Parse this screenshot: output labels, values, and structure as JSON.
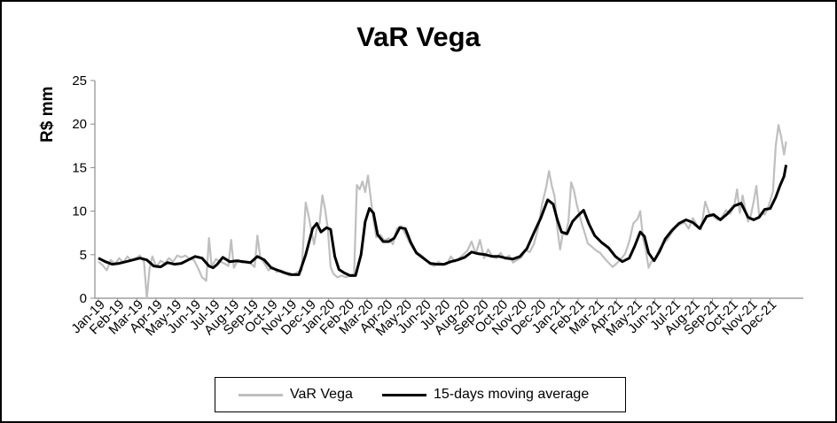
{
  "chart_data": {
    "type": "line",
    "title": "VaR Vega",
    "ylabel": "R$ mm",
    "xlabel": "",
    "ylim": [
      0,
      25
    ],
    "yticks": [
      "0",
      "5",
      "10",
      "15",
      "20",
      "25"
    ],
    "month_labels": [
      "Jan-19",
      "Feb-19",
      "Mar-19",
      "Apr-19",
      "May-19",
      "Jun-19",
      "Jul-19",
      "Aug-19",
      "Sep-19",
      "Oct-19",
      "Nov-19",
      "Dec-19",
      "Jan-20",
      "Feb-20",
      "Mar-20",
      "Apr-20",
      "May-20",
      "Jun-20",
      "Jul-20",
      "Aug-20",
      "Sep-20",
      "Oct-20",
      "Nov-20",
      "Dec-20",
      "Jan-21",
      "Feb-21",
      "Mar-21",
      "Apr-21",
      "May-21",
      "Jun-21",
      "Jul-21",
      "Aug-21",
      "Sep-21",
      "Oct-21",
      "Nov-21",
      "Dec-21"
    ],
    "legend_position": "bottom",
    "grid": false,
    "series": [
      {
        "name": "VaR Vega",
        "color": "#bfbfbf",
        "points": [
          [
            0,
            4.2
          ],
          [
            0.3,
            3.8
          ],
          [
            0.6,
            3.2
          ],
          [
            0.9,
            4.4
          ],
          [
            1.2,
            3.9
          ],
          [
            1.5,
            4.6
          ],
          [
            1.8,
            4.1
          ],
          [
            2.1,
            4.8
          ],
          [
            2.4,
            4.3
          ],
          [
            2.7,
            4.6
          ],
          [
            3.0,
            4.9
          ],
          [
            3.3,
            4.2
          ],
          [
            3.5,
            0
          ],
          [
            3.7,
            3.4
          ],
          [
            3.9,
            4.8
          ],
          [
            4.2,
            3.6
          ],
          [
            4.5,
            4.3
          ],
          [
            4.8,
            4.0
          ],
          [
            5.1,
            4.6
          ],
          [
            5.4,
            4.2
          ],
          [
            5.7,
            4.9
          ],
          [
            6.0,
            4.7
          ],
          [
            6.3,
            4.9
          ],
          [
            6.6,
            4.5
          ],
          [
            6.9,
            4.4
          ],
          [
            7.2,
            3.5
          ],
          [
            7.5,
            2.4
          ],
          [
            7.8,
            2.0
          ],
          [
            8.0,
            6.9
          ],
          [
            8.2,
            3.6
          ],
          [
            8.5,
            4.5
          ],
          [
            8.8,
            4.2
          ],
          [
            9.1,
            4.0
          ],
          [
            9.4,
            3.7
          ],
          [
            9.6,
            6.7
          ],
          [
            9.8,
            3.5
          ],
          [
            10.1,
            4.4
          ],
          [
            10.4,
            4.1
          ],
          [
            10.7,
            4.2
          ],
          [
            11.0,
            4.0
          ],
          [
            11.3,
            3.6
          ],
          [
            11.5,
            7.2
          ],
          [
            11.7,
            4.8
          ],
          [
            12.0,
            4.0
          ],
          [
            12.3,
            3.2
          ],
          [
            12.6,
            3.6
          ],
          [
            12.9,
            3.0
          ],
          [
            13.2,
            3.2
          ],
          [
            13.5,
            3.0
          ],
          [
            13.8,
            2.6
          ],
          [
            14.1,
            2.7
          ],
          [
            14.4,
            3.0
          ],
          [
            14.7,
            3.2
          ],
          [
            15.0,
            11.0
          ],
          [
            15.2,
            9.5
          ],
          [
            15.4,
            7.8
          ],
          [
            15.6,
            6.2
          ],
          [
            15.8,
            8.0
          ],
          [
            16.0,
            8.6
          ],
          [
            16.2,
            11.8
          ],
          [
            16.4,
            10.2
          ],
          [
            16.6,
            7.9
          ],
          [
            16.8,
            3.6
          ],
          [
            17.0,
            2.8
          ],
          [
            17.3,
            2.4
          ],
          [
            17.6,
            2.6
          ],
          [
            17.9,
            2.4
          ],
          [
            18.2,
            2.6
          ],
          [
            18.5,
            2.8
          ],
          [
            18.7,
            13.0
          ],
          [
            18.9,
            12.5
          ],
          [
            19.1,
            13.4
          ],
          [
            19.3,
            12.2
          ],
          [
            19.5,
            14.1
          ],
          [
            19.7,
            11.5
          ],
          [
            19.9,
            9.0
          ],
          [
            20.1,
            7.0
          ],
          [
            20.4,
            7.3
          ],
          [
            20.7,
            6.6
          ],
          [
            21.0,
            6.9
          ],
          [
            21.3,
            6.2
          ],
          [
            21.6,
            8.0
          ],
          [
            21.9,
            8.3
          ],
          [
            22.2,
            7.4
          ],
          [
            22.5,
            6.4
          ],
          [
            22.8,
            5.6
          ],
          [
            23.1,
            5.2
          ],
          [
            23.4,
            4.9
          ],
          [
            23.7,
            4.4
          ],
          [
            24.0,
            3.9
          ],
          [
            24.3,
            3.7
          ],
          [
            24.6,
            4.2
          ],
          [
            24.9,
            3.8
          ],
          [
            25.2,
            3.9
          ],
          [
            25.5,
            4.8
          ],
          [
            25.8,
            4.2
          ],
          [
            26.1,
            4.6
          ],
          [
            26.4,
            5.0
          ],
          [
            26.7,
            5.5
          ],
          [
            27.0,
            6.5
          ],
          [
            27.3,
            5.1
          ],
          [
            27.6,
            6.7
          ],
          [
            27.9,
            4.6
          ],
          [
            28.2,
            5.6
          ],
          [
            28.5,
            4.8
          ],
          [
            28.8,
            4.6
          ],
          [
            29.1,
            5.2
          ],
          [
            29.4,
            4.5
          ],
          [
            29.7,
            4.9
          ],
          [
            30.0,
            4.1
          ],
          [
            30.3,
            4.4
          ],
          [
            30.6,
            4.7
          ],
          [
            30.9,
            5.5
          ],
          [
            31.2,
            5.3
          ],
          [
            31.5,
            6.2
          ],
          [
            31.8,
            8.0
          ],
          [
            32.1,
            10.8
          ],
          [
            32.4,
            12.8
          ],
          [
            32.6,
            14.6
          ],
          [
            32.8,
            12.9
          ],
          [
            33.0,
            11.7
          ],
          [
            33.2,
            8.0
          ],
          [
            33.4,
            5.6
          ],
          [
            33.6,
            7.5
          ],
          [
            33.8,
            7.3
          ],
          [
            34.0,
            8.8
          ],
          [
            34.2,
            13.3
          ],
          [
            34.4,
            12.4
          ],
          [
            34.6,
            10.8
          ],
          [
            34.8,
            9.6
          ],
          [
            35.0,
            8.4
          ],
          [
            35.2,
            7.4
          ],
          [
            35.4,
            6.3
          ],
          [
            35.7,
            5.9
          ],
          [
            36.0,
            5.5
          ],
          [
            36.3,
            5.2
          ],
          [
            36.6,
            4.6
          ],
          [
            36.9,
            4.1
          ],
          [
            37.2,
            3.6
          ],
          [
            37.5,
            4.0
          ],
          [
            37.8,
            4.5
          ],
          [
            38.1,
            5.1
          ],
          [
            38.4,
            6.5
          ],
          [
            38.7,
            8.6
          ],
          [
            39.0,
            9.1
          ],
          [
            39.2,
            10.0
          ],
          [
            39.4,
            6.9
          ],
          [
            39.6,
            5.5
          ],
          [
            39.8,
            3.5
          ],
          [
            40.0,
            4.2
          ],
          [
            40.3,
            4.6
          ],
          [
            40.6,
            5.7
          ],
          [
            40.9,
            6.3
          ],
          [
            41.2,
            6.8
          ],
          [
            41.5,
            7.6
          ],
          [
            41.8,
            8.2
          ],
          [
            42.1,
            8.5
          ],
          [
            42.4,
            8.7
          ],
          [
            42.7,
            8.0
          ],
          [
            43.0,
            9.2
          ],
          [
            43.3,
            8.4
          ],
          [
            43.6,
            7.9
          ],
          [
            43.9,
            11.1
          ],
          [
            44.2,
            9.7
          ],
          [
            44.5,
            9.4
          ],
          [
            44.8,
            9.0
          ],
          [
            45.1,
            9.3
          ],
          [
            45.4,
            10.1
          ],
          [
            45.7,
            9.7
          ],
          [
            46.0,
            10.6
          ],
          [
            46.2,
            12.5
          ],
          [
            46.4,
            9.8
          ],
          [
            46.6,
            11.8
          ],
          [
            46.8,
            10.2
          ],
          [
            47.0,
            8.8
          ],
          [
            47.2,
            9.5
          ],
          [
            47.4,
            11.1
          ],
          [
            47.6,
            12.9
          ],
          [
            47.8,
            9.5
          ],
          [
            48.0,
            9.8
          ],
          [
            48.2,
            9.6
          ],
          [
            48.4,
            10.2
          ],
          [
            48.6,
            11.2
          ],
          [
            48.8,
            12.3
          ],
          [
            49.0,
            17.5
          ],
          [
            49.2,
            19.9
          ],
          [
            49.4,
            18.5
          ],
          [
            49.6,
            16.5
          ],
          [
            49.75,
            18.0
          ]
        ]
      },
      {
        "name": "15-days moving average",
        "color": "#000000",
        "points": [
          [
            0,
            4.6
          ],
          [
            0.5,
            4.2
          ],
          [
            1.0,
            3.9
          ],
          [
            1.5,
            4.0
          ],
          [
            2.0,
            4.2
          ],
          [
            2.5,
            4.4
          ],
          [
            3.0,
            4.6
          ],
          [
            3.5,
            4.4
          ],
          [
            4.0,
            3.7
          ],
          [
            4.5,
            3.6
          ],
          [
            5.0,
            4.1
          ],
          [
            5.5,
            3.9
          ],
          [
            6.0,
            4.0
          ],
          [
            6.5,
            4.4
          ],
          [
            7.0,
            4.8
          ],
          [
            7.5,
            4.6
          ],
          [
            8.0,
            3.7
          ],
          [
            8.3,
            3.5
          ],
          [
            8.6,
            3.9
          ],
          [
            9.0,
            4.7
          ],
          [
            9.5,
            4.2
          ],
          [
            10.0,
            4.3
          ],
          [
            10.5,
            4.2
          ],
          [
            11.0,
            4.1
          ],
          [
            11.5,
            4.8
          ],
          [
            12.0,
            4.4
          ],
          [
            12.5,
            3.5
          ],
          [
            13.0,
            3.2
          ],
          [
            13.5,
            2.9
          ],
          [
            14.0,
            2.7
          ],
          [
            14.5,
            2.7
          ],
          [
            15.0,
            5.0
          ],
          [
            15.5,
            8.0
          ],
          [
            15.8,
            8.6
          ],
          [
            16.1,
            7.6
          ],
          [
            16.5,
            8.1
          ],
          [
            16.8,
            7.9
          ],
          [
            17.1,
            4.8
          ],
          [
            17.4,
            3.3
          ],
          [
            17.8,
            2.9
          ],
          [
            18.2,
            2.6
          ],
          [
            18.6,
            2.6
          ],
          [
            19.0,
            5.0
          ],
          [
            19.3,
            8.8
          ],
          [
            19.6,
            10.3
          ],
          [
            19.9,
            9.8
          ],
          [
            20.2,
            7.3
          ],
          [
            20.6,
            6.5
          ],
          [
            21.0,
            6.5
          ],
          [
            21.4,
            6.9
          ],
          [
            21.8,
            8.1
          ],
          [
            22.2,
            8.0
          ],
          [
            22.6,
            6.4
          ],
          [
            23.0,
            5.2
          ],
          [
            23.5,
            4.6
          ],
          [
            24.0,
            4.0
          ],
          [
            24.5,
            3.9
          ],
          [
            25.0,
            3.9
          ],
          [
            25.5,
            4.2
          ],
          [
            26.0,
            4.4
          ],
          [
            26.5,
            4.7
          ],
          [
            27.0,
            5.3
          ],
          [
            27.5,
            5.1
          ],
          [
            28.0,
            5.0
          ],
          [
            28.5,
            4.8
          ],
          [
            29.0,
            4.8
          ],
          [
            29.5,
            4.6
          ],
          [
            30.0,
            4.5
          ],
          [
            30.5,
            4.8
          ],
          [
            31.0,
            5.7
          ],
          [
            31.5,
            7.5
          ],
          [
            32.0,
            9.2
          ],
          [
            32.5,
            11.3
          ],
          [
            32.9,
            10.8
          ],
          [
            33.2,
            9.0
          ],
          [
            33.5,
            7.6
          ],
          [
            33.9,
            7.4
          ],
          [
            34.3,
            8.8
          ],
          [
            34.7,
            9.5
          ],
          [
            35.1,
            10.1
          ],
          [
            35.5,
            8.5
          ],
          [
            35.9,
            7.2
          ],
          [
            36.4,
            6.4
          ],
          [
            36.9,
            5.8
          ],
          [
            37.4,
            4.8
          ],
          [
            37.9,
            4.2
          ],
          [
            38.4,
            4.6
          ],
          [
            38.8,
            6.0
          ],
          [
            39.2,
            7.6
          ],
          [
            39.5,
            7.1
          ],
          [
            39.8,
            5.2
          ],
          [
            40.2,
            4.3
          ],
          [
            40.6,
            5.4
          ],
          [
            41.0,
            6.8
          ],
          [
            41.5,
            7.8
          ],
          [
            42.0,
            8.6
          ],
          [
            42.5,
            9.0
          ],
          [
            43.0,
            8.7
          ],
          [
            43.5,
            8.0
          ],
          [
            44.0,
            9.4
          ],
          [
            44.5,
            9.6
          ],
          [
            45.0,
            9.0
          ],
          [
            45.5,
            9.7
          ],
          [
            46.0,
            10.6
          ],
          [
            46.5,
            10.9
          ],
          [
            47.0,
            9.3
          ],
          [
            47.4,
            9.0
          ],
          [
            47.8,
            9.3
          ],
          [
            48.2,
            10.2
          ],
          [
            48.6,
            10.3
          ],
          [
            49.0,
            11.6
          ],
          [
            49.3,
            12.9
          ],
          [
            49.6,
            14.0
          ],
          [
            49.75,
            15.3
          ]
        ]
      }
    ]
  },
  "legend": {
    "item1": "VaR Vega",
    "item2": "15-days moving average"
  },
  "colors": {
    "var_vega": "#bfbfbf",
    "moving_average": "#000000",
    "axis": "#8c8c8c"
  }
}
